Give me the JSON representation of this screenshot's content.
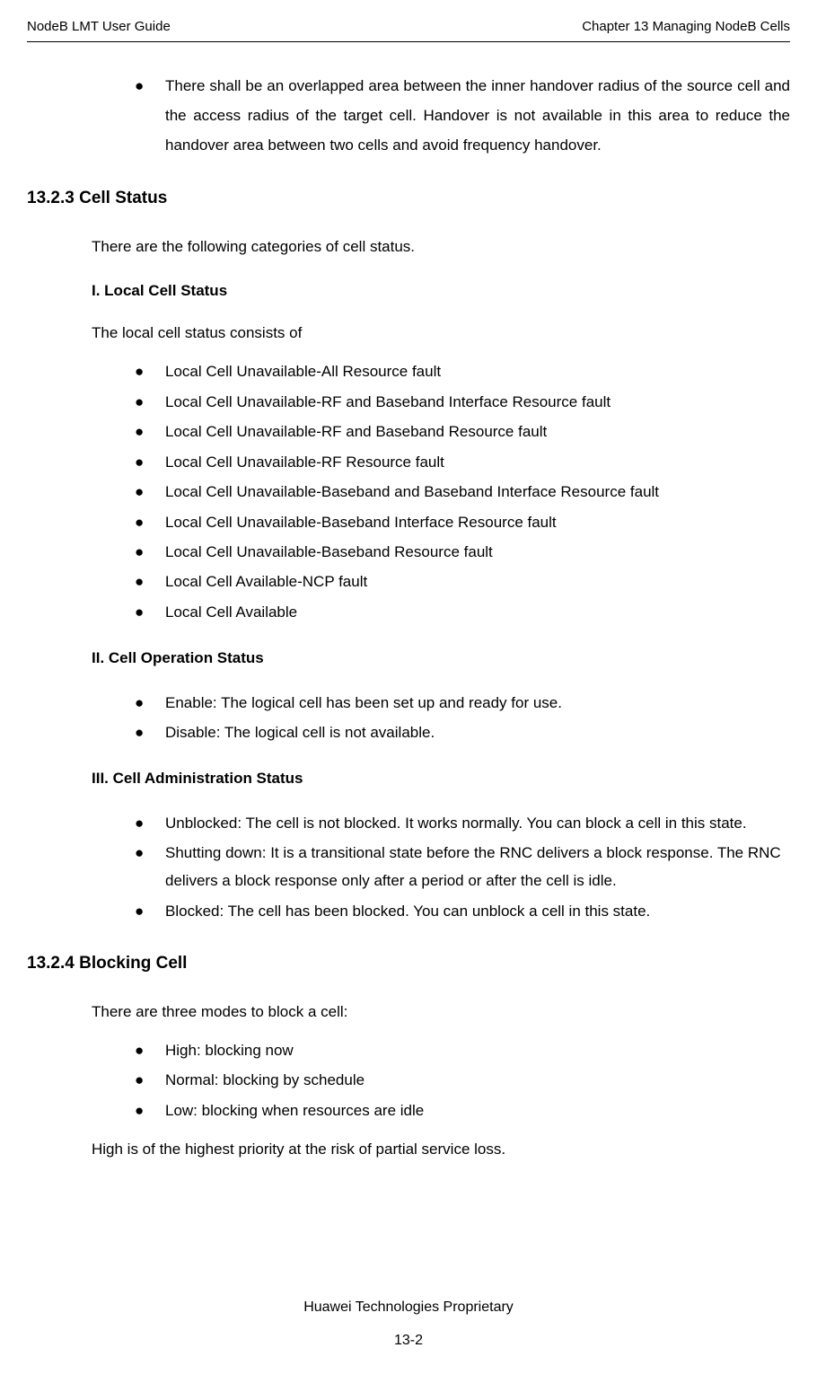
{
  "header": {
    "left": "NodeB LMT User Guide",
    "right": "Chapter 13  Managing NodeB Cells"
  },
  "intro_bullet": "There shall be an overlapped area between the inner handover radius of the source cell and the access radius of the target cell. Handover is not available in this area to reduce the handover area between two cells and avoid frequency handover.",
  "s1323": {
    "heading": "13.2.3  Cell Status",
    "intro": "There are the following categories of cell status.",
    "sub1": {
      "heading": "I. Local Cell Status",
      "intro": "The local cell status consists of",
      "items": [
        "Local Cell Unavailable-All Resource fault",
        "Local Cell Unavailable-RF and Baseband Interface Resource fault",
        "Local Cell Unavailable-RF and Baseband Resource fault",
        "Local Cell Unavailable-RF Resource fault",
        "Local Cell Unavailable-Baseband and Baseband Interface Resource fault",
        "Local Cell Unavailable-Baseband Interface Resource fault",
        "Local Cell Unavailable-Baseband Resource fault",
        "Local Cell Available-NCP fault",
        "Local Cell Available"
      ]
    },
    "sub2": {
      "heading": "II. Cell Operation Status",
      "items": [
        "Enable: The logical cell has been set up and ready for use.",
        "Disable: The logical cell is not available."
      ]
    },
    "sub3": {
      "heading": "III. Cell Administration Status",
      "items": [
        "Unblocked: The cell is not blocked. It works normally. You can block a cell in this state.",
        "Shutting down: It is a transitional state before the RNC delivers a block response. The RNC delivers a block response only after a period or after the cell is idle.",
        "Blocked: The cell has been blocked. You can unblock a cell in this state."
      ]
    }
  },
  "s1324": {
    "heading": "13.2.4  Blocking Cell",
    "intro": "There are three modes to block a cell:",
    "items": [
      "High: blocking now",
      "Normal: blocking by schedule",
      "Low: blocking when resources are idle"
    ],
    "outro": "High is of the highest priority at the risk of partial service loss."
  },
  "footer": {
    "line1": "Huawei Technologies Proprietary",
    "pagenum": "13-2"
  },
  "bullet_glyph": "●",
  "colors": {
    "text": "#000000",
    "background": "#ffffff",
    "rule": "#000000"
  }
}
